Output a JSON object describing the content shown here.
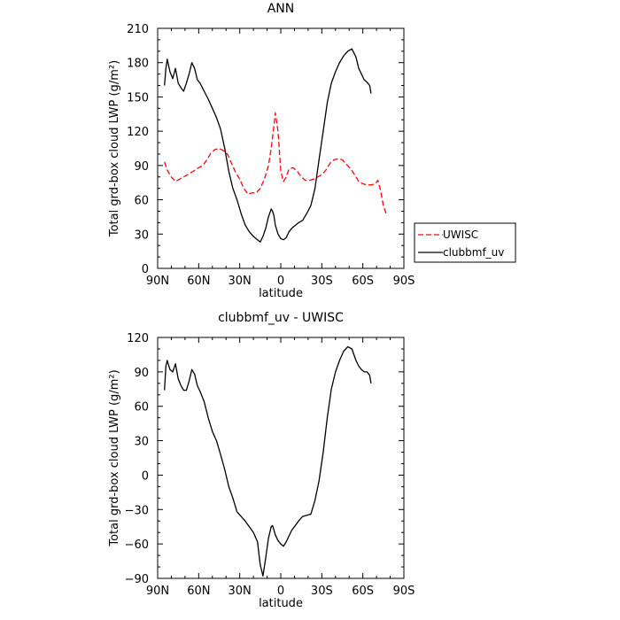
{
  "chart_data": [
    {
      "type": "line",
      "title": "ANN",
      "xlabel": "latitude",
      "ylabel": "Total grd-box cloud LWP (g/m²)",
      "xlim": [
        90,
        -90
      ],
      "ylim": [
        0,
        210
      ],
      "x_ticks": [
        90,
        60,
        30,
        0,
        -30,
        -60,
        -90
      ],
      "x_tick_labels": [
        "90N",
        "60N",
        "30N",
        "0",
        "30S",
        "60S",
        "90S"
      ],
      "y_ticks": [
        0,
        30,
        60,
        90,
        120,
        150,
        180,
        210
      ],
      "y_tick_labels": [
        "0",
        "30",
        "60",
        "90",
        "120",
        "150",
        "180",
        "210"
      ],
      "legend_position": "right",
      "series": [
        {
          "name": "UWISC",
          "color": "#ff0000",
          "dash": "dashed",
          "x": [
            85,
            83,
            80,
            77,
            74,
            71,
            68,
            64,
            60,
            57,
            54,
            51,
            48,
            45,
            42,
            39,
            36,
            33,
            30,
            27,
            24,
            21,
            18,
            15,
            12,
            9,
            7,
            5,
            4,
            2,
            0,
            -2,
            -4,
            -6,
            -9,
            -12,
            -15,
            -18,
            -21,
            -24,
            -27,
            -30,
            -33,
            -36,
            -39,
            -42,
            -45,
            -48,
            -51,
            -54,
            -57,
            -60,
            -63,
            -66,
            -69,
            -71,
            -73,
            -75,
            -77
          ],
          "values": [
            93,
            86,
            80,
            76,
            78,
            80,
            82,
            85,
            88,
            90,
            95,
            101,
            104,
            105,
            103,
            100,
            92,
            84,
            78,
            70,
            65,
            66,
            66,
            70,
            78,
            90,
            105,
            125,
            136,
            120,
            85,
            76,
            80,
            87,
            88,
            85,
            80,
            77,
            77,
            78,
            80,
            82,
            86,
            92,
            95,
            96,
            95,
            91,
            87,
            82,
            76,
            74,
            73,
            73,
            74,
            77,
            68,
            55,
            48
          ]
        },
        {
          "name": "clubbmf_uv",
          "color": "#000000",
          "dash": "solid",
          "x": [
            85,
            84,
            83,
            81,
            79,
            77,
            75,
            73,
            71,
            69,
            67,
            65,
            63,
            61,
            59,
            56,
            53,
            50,
            47,
            44,
            41,
            38,
            35,
            32,
            29,
            26,
            23,
            20,
            17,
            15,
            13,
            11,
            9,
            7,
            6,
            5,
            4,
            2,
            0,
            -2,
            -4,
            -6,
            -8,
            -10,
            -13,
            -16,
            -19,
            -22,
            -25,
            -28,
            -31,
            -34,
            -37,
            -40,
            -43,
            -46,
            -49,
            -52,
            -55,
            -57,
            -59,
            -61,
            -63,
            -65,
            -66
          ],
          "values": [
            160,
            175,
            183,
            172,
            166,
            175,
            162,
            158,
            155,
            162,
            170,
            180,
            175,
            165,
            162,
            155,
            148,
            140,
            132,
            122,
            105,
            85,
            70,
            60,
            48,
            38,
            32,
            28,
            25,
            23,
            28,
            35,
            45,
            52,
            50,
            46,
            38,
            30,
            26,
            25,
            27,
            32,
            35,
            37,
            40,
            42,
            48,
            55,
            70,
            95,
            120,
            145,
            162,
            172,
            180,
            186,
            190,
            192,
            185,
            175,
            170,
            165,
            163,
            160,
            153
          ]
        }
      ]
    },
    {
      "type": "line",
      "title": "clubbmf_uv - UWISC",
      "xlabel": "latitude",
      "ylabel": "Total grd-box cloud LWP (g/m²)",
      "xlim": [
        90,
        -90
      ],
      "ylim": [
        -90,
        120
      ],
      "x_ticks": [
        90,
        60,
        30,
        0,
        -30,
        -60,
        -90
      ],
      "x_tick_labels": [
        "90N",
        "60N",
        "30N",
        "0",
        "30S",
        "60S",
        "90S"
      ],
      "y_ticks": [
        -90,
        -60,
        -30,
        0,
        30,
        60,
        90,
        120
      ],
      "y_tick_labels": [
        "−90",
        "−60",
        "−30",
        "0",
        "30",
        "60",
        "90",
        "120"
      ],
      "series": [
        {
          "color": "#000000",
          "dash": "solid",
          "x": [
            85,
            84,
            83,
            81,
            79,
            77,
            75,
            73,
            71,
            69,
            67,
            65,
            63,
            61,
            59,
            56,
            53,
            50,
            47,
            44,
            41,
            38,
            35,
            32,
            29,
            26,
            23,
            20,
            17,
            15,
            13,
            11,
            9,
            7,
            6,
            5,
            4,
            2,
            0,
            -2,
            -4,
            -6,
            -8,
            -10,
            -13,
            -16,
            -19,
            -22,
            -25,
            -28,
            -31,
            -34,
            -37,
            -40,
            -43,
            -46,
            -49,
            -52,
            -55,
            -57,
            -59,
            -61,
            -63,
            -65,
            -66
          ],
          "values": [
            74,
            95,
            100,
            92,
            90,
            97,
            84,
            78,
            74,
            74,
            82,
            92,
            88,
            78,
            73,
            64,
            50,
            38,
            30,
            18,
            5,
            -10,
            -20,
            -32,
            -36,
            -40,
            -45,
            -50,
            -58,
            -78,
            -88,
            -72,
            -55,
            -45,
            -44,
            -48,
            -52,
            -57,
            -60,
            -62,
            -58,
            -53,
            -48,
            -45,
            -40,
            -36,
            -35,
            -34,
            -22,
            -5,
            20,
            50,
            75,
            90,
            100,
            108,
            112,
            110,
            100,
            95,
            92,
            90,
            90,
            87,
            80
          ]
        }
      ]
    }
  ]
}
